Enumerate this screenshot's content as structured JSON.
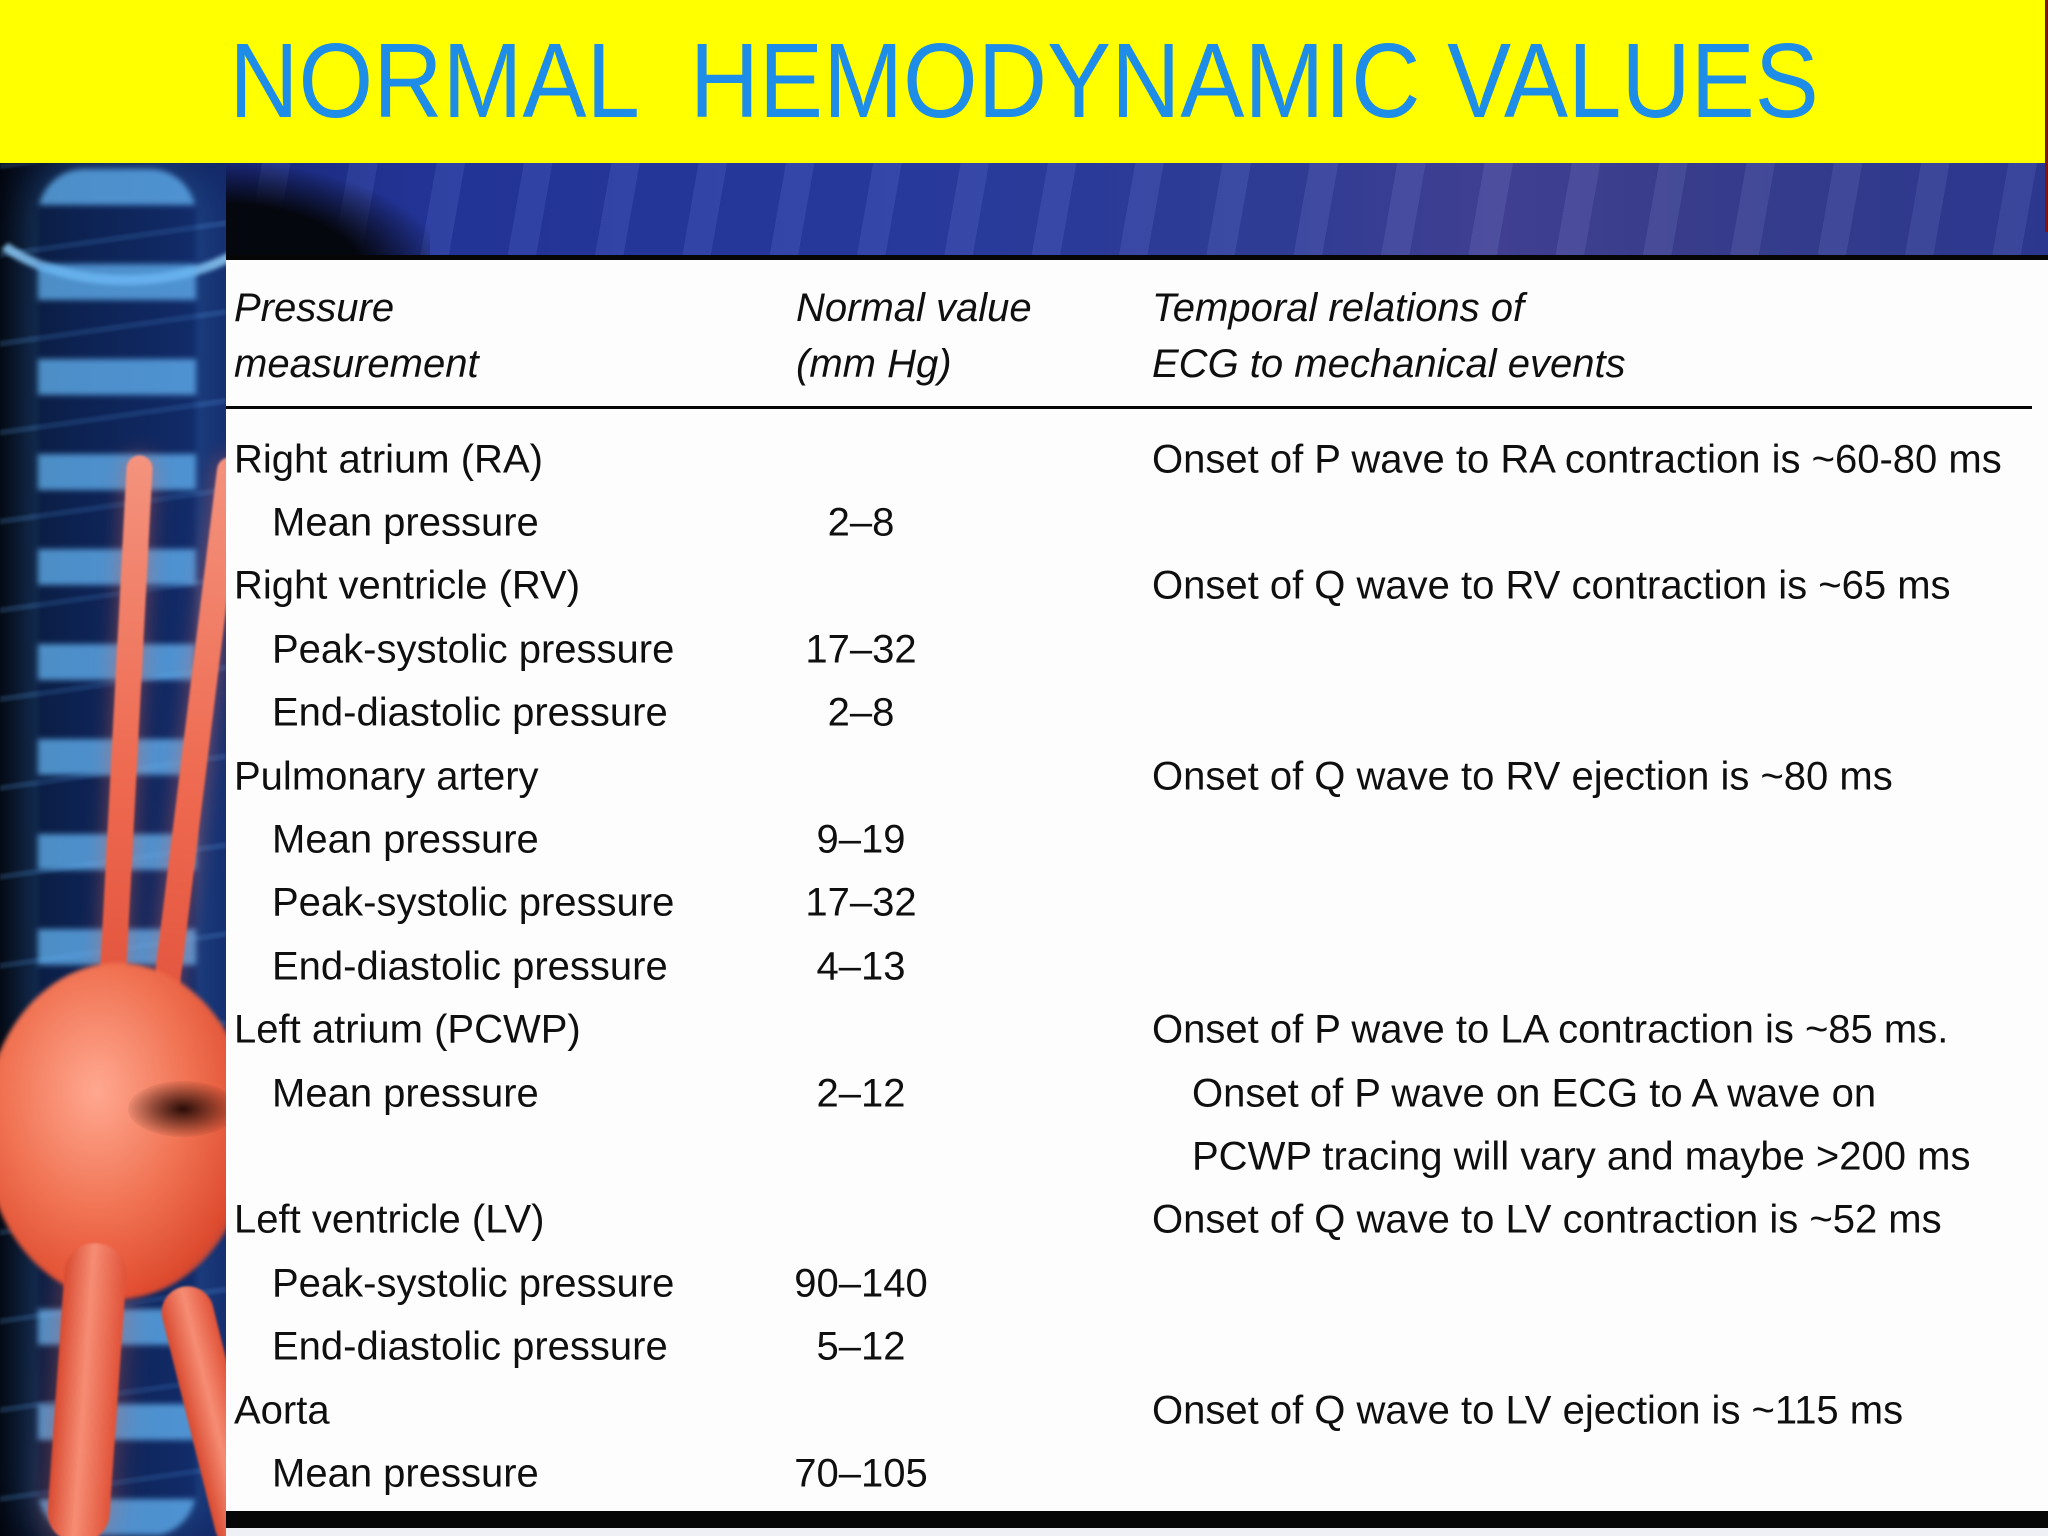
{
  "slide": {
    "title": "NORMAL  HEMODYNAMIC VALUES"
  },
  "colors": {
    "banner_bg": "#ffff00",
    "title_text": "#1d8de8",
    "background_navy": "#24379b",
    "table_bg": "#fdfdfe",
    "table_text": "#0f0f0f",
    "table_border": "#060606",
    "vessel_red": "#ee6a50",
    "bone_blue": "#5fafF0"
  },
  "table": {
    "headers": {
      "col1_line1": "Pressure",
      "col1_line2": "measurement",
      "col2_line1": "Normal value",
      "col2_line2": "(mm Hg)",
      "col3_line1": "Temporal relations of",
      "col3_line2": "ECG to mechanical events"
    },
    "rows": [
      {
        "label": "Right atrium (RA)",
        "indent": false,
        "value": "",
        "note": "Onset of P wave to RA contraction is ~60-80 ms",
        "note_indent": false
      },
      {
        "label": "Mean pressure",
        "indent": true,
        "value": "2–8",
        "note": "",
        "note_indent": false
      },
      {
        "label": "Right ventricle (RV)",
        "indent": false,
        "value": "",
        "note": "Onset of Q wave to RV contraction is ~65 ms",
        "note_indent": false
      },
      {
        "label": "Peak-systolic pressure",
        "indent": true,
        "value": "17–32",
        "note": "",
        "note_indent": false
      },
      {
        "label": "End-diastolic pressure",
        "indent": true,
        "value": "2–8",
        "note": "",
        "note_indent": false
      },
      {
        "label": "Pulmonary artery",
        "indent": false,
        "value": "",
        "note": "Onset of Q wave to RV ejection is ~80 ms",
        "note_indent": false
      },
      {
        "label": "Mean pressure",
        "indent": true,
        "value": "9–19",
        "note": "",
        "note_indent": false
      },
      {
        "label": "Peak-systolic pressure",
        "indent": true,
        "value": "17–32",
        "note": "",
        "note_indent": false
      },
      {
        "label": "End-diastolic pressure",
        "indent": true,
        "value": "4–13",
        "note": "",
        "note_indent": false
      },
      {
        "label": "Left atrium (PCWP)",
        "indent": false,
        "value": "",
        "note": "Onset of P wave to LA contraction is ~85 ms.",
        "note_indent": false
      },
      {
        "label": "Mean pressure",
        "indent": true,
        "value": "2–12",
        "note": "Onset of P wave on ECG to A wave on",
        "note_indent": true
      },
      {
        "label": "",
        "indent": false,
        "value": "",
        "note": "PCWP tracing will vary and maybe >200 ms",
        "note_indent": true
      },
      {
        "label": "Left ventricle (LV)",
        "indent": false,
        "value": "",
        "note": "Onset of Q wave to LV contraction is ~52 ms",
        "note_indent": false
      },
      {
        "label": "Peak-systolic pressure",
        "indent": true,
        "value": "90–140",
        "note": "",
        "note_indent": false
      },
      {
        "label": "End-diastolic pressure",
        "indent": true,
        "value": "5–12",
        "note": "",
        "note_indent": false
      },
      {
        "label": "Aorta",
        "indent": false,
        "value": "",
        "note": "Onset of Q wave to LV ejection is ~115 ms",
        "note_indent": false
      },
      {
        "label": "Mean pressure",
        "indent": true,
        "value": "70–105",
        "note": "",
        "note_indent": false
      }
    ]
  }
}
